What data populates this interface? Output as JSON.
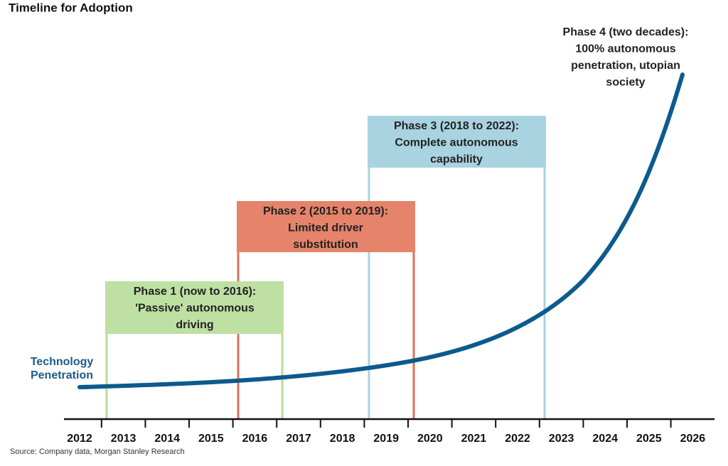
{
  "title": "Timeline for Adoption",
  "curve_label": [
    "Technology",
    "Penetration"
  ],
  "phases": [
    {
      "lines": [
        "Phase 1 (now to 2016):",
        "'Passive' autonomous",
        "driving"
      ]
    },
    {
      "lines": [
        "Phase 2 (2015 to 2019):",
        "Limited driver",
        "substitution"
      ]
    },
    {
      "lines": [
        "Phase 3 (2018 to 2022):",
        "Complete autonomous",
        "capability"
      ]
    },
    {
      "lines": [
        "Phase 4 (two decades):",
        "100% autonomous",
        "penetration, utopian",
        "society"
      ]
    }
  ],
  "years": [
    "2012",
    "2013",
    "2014",
    "2015",
    "2016",
    "2017",
    "2018",
    "2019",
    "2020",
    "2021",
    "2022",
    "2023",
    "2024",
    "2025",
    "2026"
  ],
  "source": "Source: Company data, Morgan Stanley Research"
}
